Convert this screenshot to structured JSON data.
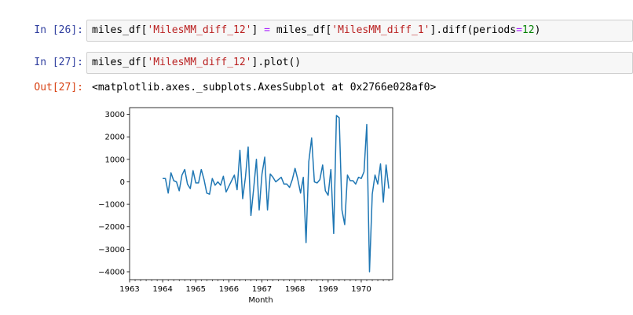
{
  "cells": [
    {
      "prompt": "In [26]:",
      "code": {
        "var1": "miles_df[",
        "str1": "'MilesMM_diff_12'",
        "mid1": "] ",
        "eq": "=",
        "var2": " miles_df[",
        "str2": "'MilesMM_diff_1'",
        "mid2": "].diff(periods",
        "eq2": "=",
        "num": "12",
        "end": ")"
      }
    },
    {
      "prompt": "In [27]:",
      "code": {
        "var1": "miles_df[",
        "str1": "'MilesMM_diff_12'",
        "end": "].plot()"
      },
      "out_prompt": "Out[27]:",
      "output": "<matplotlib.axes._subplots.AxesSubplot at 0x2766e028af0>"
    }
  ],
  "colors": {
    "prompt_in": "#303F9F",
    "prompt_out": "#D84315",
    "string": "#BA2121",
    "number": "#008000",
    "operator": "#AA22FF",
    "line": "#1f77b4"
  },
  "chart_data": {
    "type": "line",
    "title": "",
    "xlabel": "Month",
    "ylabel": "",
    "xlim": [
      1963.0,
      1970.95
    ],
    "ylim": [
      -4350,
      3300
    ],
    "x_ticks": [
      "1963",
      "1964",
      "1965",
      "1966",
      "1967",
      "1968",
      "1969",
      "1970"
    ],
    "y_ticks": [
      "3000",
      "2000",
      "1000",
      "0",
      "−1000",
      "−2000",
      "−3000",
      "−4000"
    ],
    "y_tick_values": [
      3000,
      2000,
      1000,
      0,
      -1000,
      -2000,
      -3000,
      -4000
    ],
    "x_start": "1964-01",
    "x_step_months": 1,
    "series": [
      {
        "values": [
          150,
          150,
          -500,
          400,
          50,
          0,
          -400,
          300,
          550,
          -100,
          -300,
          500,
          -50,
          -50,
          550,
          100,
          -500,
          -550,
          150,
          -150,
          0,
          -150,
          250,
          -450,
          -200,
          50,
          300,
          -350,
          1400,
          -750,
          200,
          1550,
          -1500,
          -300,
          1000,
          -1250,
          350,
          1100,
          -1250,
          350,
          200,
          0,
          100,
          200,
          -100,
          -100,
          -250,
          100,
          600,
          100,
          -500,
          200,
          -2700,
          900,
          1950,
          0,
          -50,
          100,
          750,
          -400,
          -600,
          550,
          -2300,
          2950,
          2850,
          -1250,
          -1900,
          300,
          50,
          50,
          -100,
          200,
          150,
          450,
          2550,
          -4000,
          -550,
          300,
          -100,
          800,
          -900,
          750,
          -300
        ]
      }
    ]
  }
}
